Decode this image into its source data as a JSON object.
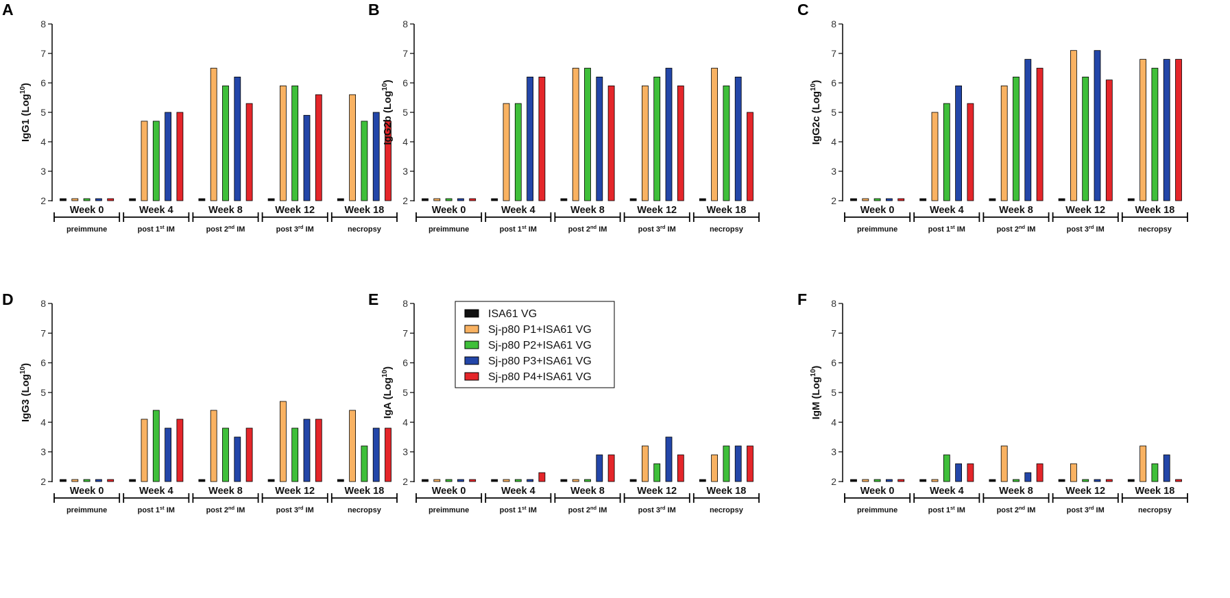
{
  "series_colors": [
    "#111111",
    "#f9b262",
    "#3fbf3a",
    "#2346a8",
    "#e4262a"
  ],
  "legend": {
    "entries": [
      "ISA61 VG",
      "Sj-p80 P1+ISA61 VG",
      "Sj-p80 P2+ISA61 VG",
      "Sj-p80 P3+ISA61 VG",
      "Sj-p80 P4+ISA61 VG"
    ]
  },
  "chart_data": [
    {
      "panel": "A",
      "type": "bar",
      "ylabel": "IgG1 (Log",
      "ylabel_sup": "10",
      "ylabel_close": ")",
      "ylim": [
        2,
        8
      ],
      "yticks": [
        2,
        3,
        4,
        5,
        6,
        7,
        8
      ],
      "categories": [
        "Week 0",
        "Week 4",
        "Week 8",
        "Week 12",
        "Week 18"
      ],
      "groups": [
        [
          "pre",
          "immune",
          ""
        ],
        [
          "post 1",
          "st",
          " IM"
        ],
        [
          "post 2",
          "nd",
          " IM"
        ],
        [
          "post 3",
          "rd",
          " IM"
        ],
        [
          "necropsy",
          "",
          ""
        ]
      ],
      "series": [
        {
          "name": "ISA61 VG",
          "values": [
            2,
            2,
            2,
            2,
            2
          ]
        },
        {
          "name": "Sj-p80 P1+ISA61 VG",
          "values": [
            2,
            4.7,
            6.5,
            5.9,
            5.6
          ]
        },
        {
          "name": "Sj-p80 P2+ISA61 VG",
          "values": [
            2,
            4.7,
            5.9,
            5.9,
            4.7
          ]
        },
        {
          "name": "Sj-p80 P3+ISA61 VG",
          "values": [
            2,
            5.0,
            6.2,
            4.9,
            5.0
          ]
        },
        {
          "name": "Sj-p80 P4+ISA61 VG",
          "values": [
            2,
            5.0,
            5.3,
            5.6,
            4.7
          ]
        }
      ]
    },
    {
      "panel": "B",
      "type": "bar",
      "ylabel": "IgG2b (Log",
      "ylabel_sup": "10",
      "ylabel_close": ")",
      "ylim": [
        2,
        8
      ],
      "yticks": [
        2,
        3,
        4,
        5,
        6,
        7,
        8
      ],
      "categories": [
        "Week 0",
        "Week 4",
        "Week 8",
        "Week 12",
        "Week 18"
      ],
      "groups": [
        [
          "pre",
          "immune",
          ""
        ],
        [
          "post 1",
          "st",
          " IM"
        ],
        [
          "post 2",
          "nd",
          " IM"
        ],
        [
          "post 3",
          "rd",
          " IM"
        ],
        [
          "necropsy",
          "",
          ""
        ]
      ],
      "series": [
        {
          "name": "ISA61 VG",
          "values": [
            2,
            2,
            2,
            2,
            2
          ]
        },
        {
          "name": "Sj-p80 P1+ISA61 VG",
          "values": [
            2,
            5.3,
            6.5,
            5.9,
            6.5
          ]
        },
        {
          "name": "Sj-p80 P2+ISA61 VG",
          "values": [
            2,
            5.3,
            6.5,
            6.2,
            5.9
          ]
        },
        {
          "name": "Sj-p80 P3+ISA61 VG",
          "values": [
            2,
            6.2,
            6.2,
            6.5,
            6.2
          ]
        },
        {
          "name": "Sj-p80 P4+ISA61 VG",
          "values": [
            2,
            6.2,
            5.9,
            5.9,
            5.0
          ]
        }
      ]
    },
    {
      "panel": "C",
      "type": "bar",
      "ylabel": "IgG2c (Log",
      "ylabel_sup": "10",
      "ylabel_close": ")",
      "ylim": [
        2,
        8
      ],
      "yticks": [
        2,
        3,
        4,
        5,
        6,
        7,
        8
      ],
      "categories": [
        "Week 0",
        "Week 4",
        "Week 8",
        "Week 12",
        "Week 18"
      ],
      "groups": [
        [
          "pre",
          "immune",
          ""
        ],
        [
          "post 1",
          "st",
          " IM"
        ],
        [
          "post 2",
          "nd",
          " IM"
        ],
        [
          "post 3",
          "rd",
          " IM"
        ],
        [
          "necropsy",
          "",
          ""
        ]
      ],
      "series": [
        {
          "name": "ISA61 VG",
          "values": [
            2,
            2,
            2,
            2,
            2
          ]
        },
        {
          "name": "Sj-p80 P1+ISA61 VG",
          "values": [
            2,
            5.0,
            5.9,
            7.1,
            6.8
          ]
        },
        {
          "name": "Sj-p80 P2+ISA61 VG",
          "values": [
            2,
            5.3,
            6.2,
            6.2,
            6.5
          ]
        },
        {
          "name": "Sj-p80 P3+ISA61 VG",
          "values": [
            2,
            5.9,
            6.8,
            7.1,
            6.8
          ]
        },
        {
          "name": "Sj-p80 P4+ISA61 VG",
          "values": [
            2,
            5.3,
            6.5,
            6.1,
            6.8
          ]
        }
      ]
    },
    {
      "panel": "D",
      "type": "bar",
      "ylabel": "IgG3 (Log",
      "ylabel_sup": "10",
      "ylabel_close": ")",
      "ylim": [
        2,
        8
      ],
      "yticks": [
        2,
        3,
        4,
        5,
        6,
        7,
        8
      ],
      "categories": [
        "Week 0",
        "Week 4",
        "Week 8",
        "Week 12",
        "Week 18"
      ],
      "groups": [
        [
          "pre",
          "immune",
          ""
        ],
        [
          "post 1",
          "st",
          " IM"
        ],
        [
          "post 2",
          "nd",
          " IM"
        ],
        [
          "post 3",
          "rd",
          " IM"
        ],
        [
          "necropsy",
          "",
          ""
        ]
      ],
      "series": [
        {
          "name": "ISA61 VG",
          "values": [
            2,
            2,
            2,
            2,
            2
          ]
        },
        {
          "name": "Sj-p80 P1+ISA61 VG",
          "values": [
            2,
            4.1,
            4.4,
            4.7,
            4.4
          ]
        },
        {
          "name": "Sj-p80 P2+ISA61 VG",
          "values": [
            2,
            4.4,
            3.8,
            3.8,
            3.2
          ]
        },
        {
          "name": "Sj-p80 P3+ISA61 VG",
          "values": [
            2,
            3.8,
            3.5,
            4.1,
            3.8
          ]
        },
        {
          "name": "Sj-p80 P4+ISA61 VG",
          "values": [
            2,
            4.1,
            3.8,
            4.1,
            3.8
          ]
        }
      ]
    },
    {
      "panel": "E",
      "type": "bar",
      "ylabel": "IgA (Log",
      "ylabel_sup": "10",
      "ylabel_close": ")",
      "ylim": [
        2,
        8
      ],
      "yticks": [
        2,
        3,
        4,
        5,
        6,
        7,
        8
      ],
      "categories": [
        "Week 0",
        "Week 4",
        "Week 8",
        "Week 12",
        "Week 18"
      ],
      "groups": [
        [
          "pre",
          "immune",
          ""
        ],
        [
          "post 1",
          "st",
          " IM"
        ],
        [
          "post 2",
          "nd",
          " IM"
        ],
        [
          "post 3",
          "rd",
          " IM"
        ],
        [
          "necropsy",
          "",
          ""
        ]
      ],
      "series": [
        {
          "name": "ISA61 VG",
          "values": [
            2,
            2,
            2,
            2,
            2
          ]
        },
        {
          "name": "Sj-p80 P1+ISA61 VG",
          "values": [
            2,
            2,
            2,
            3.2,
            2.9
          ]
        },
        {
          "name": "Sj-p80 P2+ISA61 VG",
          "values": [
            2,
            2,
            2,
            2.6,
            3.2
          ]
        },
        {
          "name": "Sj-p80 P3+ISA61 VG",
          "values": [
            2,
            2,
            2.9,
            3.5,
            3.2
          ]
        },
        {
          "name": "Sj-p80 P4+ISA61 VG",
          "values": [
            2,
            2.3,
            2.9,
            2.9,
            3.2
          ]
        }
      ]
    },
    {
      "panel": "F",
      "type": "bar",
      "ylabel": "IgM (Log",
      "ylabel_sup": "10",
      "ylabel_close": ")",
      "ylim": [
        2,
        8
      ],
      "yticks": [
        2,
        3,
        4,
        5,
        6,
        7,
        8
      ],
      "categories": [
        "Week 0",
        "Week 4",
        "Week 8",
        "Week 12",
        "Week 18"
      ],
      "groups": [
        [
          "pre",
          "immune",
          ""
        ],
        [
          "post 1",
          "st",
          " IM"
        ],
        [
          "post 2",
          "nd",
          " IM"
        ],
        [
          "post 3",
          "rd",
          " IM"
        ],
        [
          "necropsy",
          "",
          ""
        ]
      ],
      "series": [
        {
          "name": "ISA61 VG",
          "values": [
            2,
            2,
            2,
            2,
            2
          ]
        },
        {
          "name": "Sj-p80 P1+ISA61 VG",
          "values": [
            2,
            2,
            3.2,
            2.6,
            3.2
          ]
        },
        {
          "name": "Sj-p80 P2+ISA61 VG",
          "values": [
            2,
            2.9,
            2,
            2,
            2.6
          ]
        },
        {
          "name": "Sj-p80 P3+ISA61 VG",
          "values": [
            2,
            2.6,
            2.3,
            2,
            2.9
          ]
        },
        {
          "name": "Sj-p80 P4+ISA61 VG",
          "values": [
            2,
            2.6,
            2.6,
            2,
            2
          ]
        }
      ]
    }
  ]
}
